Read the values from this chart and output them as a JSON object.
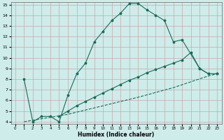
{
  "xlabel": "Humidex (Indice chaleur)",
  "xlim": [
    -0.5,
    23.5
  ],
  "ylim": [
    3.8,
    15.2
  ],
  "yticks": [
    4,
    5,
    6,
    7,
    8,
    9,
    10,
    11,
    12,
    13,
    14,
    15
  ],
  "xticks": [
    0,
    1,
    2,
    3,
    4,
    5,
    6,
    7,
    8,
    9,
    10,
    11,
    12,
    13,
    14,
    15,
    16,
    17,
    18,
    19,
    20,
    21,
    22,
    23
  ],
  "bg_color": "#ceecea",
  "line_color": "#1a6b5a",
  "grid_color": "#c8a8a8",
  "line1_x": [
    1,
    2,
    3,
    4,
    5,
    6,
    7,
    8,
    9,
    10,
    11,
    12,
    13,
    14,
    15,
    16,
    17,
    18,
    19,
    21,
    22,
    23
  ],
  "line1_y": [
    8.0,
    4.0,
    4.5,
    4.5,
    4.0,
    6.5,
    8.5,
    9.5,
    11.5,
    12.5,
    13.5,
    14.2,
    15.1,
    15.1,
    14.5,
    14.0,
    13.5,
    11.5,
    11.7,
    9.0,
    8.5,
    8.5
  ],
  "line2_x": [
    5,
    6,
    7,
    8,
    9,
    10,
    11,
    12,
    13,
    14,
    15,
    16,
    17,
    18,
    19,
    20,
    21,
    22,
    23
  ],
  "line2_y": [
    4.5,
    5.0,
    5.5,
    5.9,
    6.3,
    6.7,
    7.1,
    7.5,
    7.9,
    8.2,
    8.6,
    8.9,
    9.2,
    9.5,
    9.8,
    10.5,
    9.0,
    8.5,
    8.5
  ],
  "line3_x": [
    1,
    6,
    10,
    14,
    18,
    22,
    23
  ],
  "line3_y": [
    4.0,
    4.7,
    5.5,
    6.3,
    7.2,
    8.3,
    8.5
  ]
}
